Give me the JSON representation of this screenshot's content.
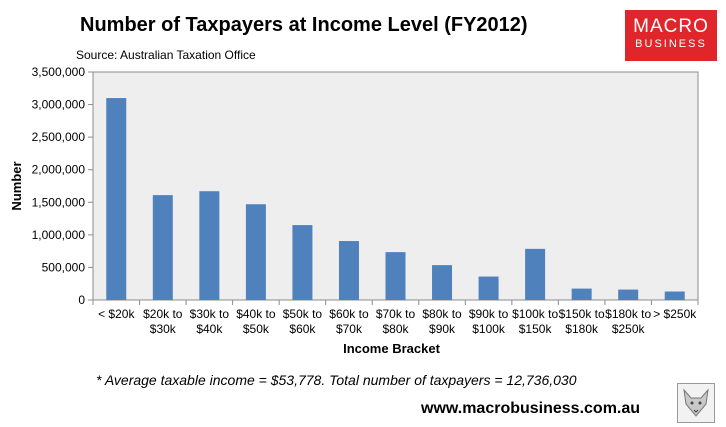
{
  "chart_data": {
    "type": "bar",
    "title": "Number of Taxpayers at Income Level (FY2012)",
    "subtitle": "Source: Australian Taxation Office",
    "xlabel": "Income Bracket",
    "ylabel": "Number",
    "ylim": [
      0,
      3500000
    ],
    "yticks": [
      0,
      500000,
      1000000,
      1500000,
      2000000,
      2500000,
      3000000,
      3500000
    ],
    "ytick_labels": [
      "0",
      "500,000",
      "1,000,000",
      "1,500,000",
      "2,000,000",
      "2,500,000",
      "3,000,000",
      "3,500,000"
    ],
    "categories": [
      [
        "< $20k"
      ],
      [
        "$20k to",
        "$30k"
      ],
      [
        "$30k to",
        "$40k"
      ],
      [
        "$40k to",
        "$50k"
      ],
      [
        "$50k to",
        "$60k"
      ],
      [
        "$60k to",
        "$70k"
      ],
      [
        "$70k to",
        "$80k"
      ],
      [
        "$80k to",
        "$90k"
      ],
      [
        "$90k to",
        "$100k"
      ],
      [
        "$100k to",
        "$150k"
      ],
      [
        "$150k to",
        "$180k"
      ],
      [
        "$180k to",
        "$250k"
      ],
      [
        "> $250k"
      ]
    ],
    "values": [
      3100000,
      1610000,
      1670000,
      1470000,
      1150000,
      905000,
      735000,
      535000,
      360000,
      785000,
      175000,
      160000,
      130000
    ],
    "grid": false,
    "legend": "none",
    "bar_color": "#4f81bd",
    "plot_background": "#eeeeee"
  },
  "footnote": "* Average taxable income = $53,778. Total number of taxpayers = 12,736,030",
  "website": "www.macrobusiness.com.au",
  "logo": {
    "line1": "MACRO",
    "line2": "BUSINESS",
    "color": "#e0262b"
  }
}
